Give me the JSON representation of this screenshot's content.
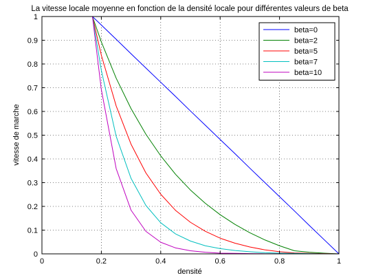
{
  "chart_data": {
    "type": "line",
    "title": "La vitesse locale moyenne en fonction de la densité locale pour différentes valeurs de beta",
    "xlabel": "densité",
    "ylabel": "vitesse de marche",
    "xlim": [
      0,
      1
    ],
    "ylim": [
      0,
      1
    ],
    "xticks": [
      "0",
      "0.2",
      "0.4",
      "0.6",
      "0.8",
      "1"
    ],
    "yticks": [
      "0",
      "0.1",
      "0.2",
      "0.3",
      "0.4",
      "0.5",
      "0.6",
      "0.7",
      "0.8",
      "0.9",
      "1"
    ],
    "grid": true,
    "legend_position": "top-right",
    "x": [
      0,
      0.1,
      0.17,
      0.2,
      0.25,
      0.3,
      0.35,
      0.4,
      0.45,
      0.5,
      0.55,
      0.6,
      0.65,
      0.7,
      0.75,
      0.8,
      0.85,
      0.9,
      0.95,
      1.0
    ],
    "series": [
      {
        "name": "beta=0",
        "color": "#0000ff",
        "values": [
          1,
          1,
          1,
          0.964,
          0.904,
          0.843,
          0.783,
          0.723,
          0.663,
          0.602,
          0.542,
          0.482,
          0.422,
          0.361,
          0.301,
          0.241,
          0.181,
          0.12,
          0.06,
          0
        ]
      },
      {
        "name": "beta=2",
        "color": "#008000",
        "values": [
          1,
          1,
          1,
          0.893,
          0.74,
          0.612,
          0.504,
          0.413,
          0.335,
          0.269,
          0.213,
          0.165,
          0.124,
          0.089,
          0.059,
          0.034,
          0.013,
          0.007,
          0.003,
          0
        ]
      },
      {
        "name": "beta=5",
        "color": "#ff0000",
        "values": [
          1,
          1,
          1,
          0.837,
          0.623,
          0.462,
          0.341,
          0.251,
          0.183,
          0.133,
          0.095,
          0.066,
          0.045,
          0.029,
          0.017,
          0.009,
          0.004,
          0.002,
          0.001,
          0
        ]
      },
      {
        "name": "beta=7",
        "color": "#00bfbf",
        "values": [
          1,
          1,
          1,
          0.773,
          0.495,
          0.318,
          0.204,
          0.131,
          0.084,
          0.054,
          0.034,
          0.022,
          0.014,
          0.009,
          0.005,
          0.003,
          0.002,
          0.001,
          0.0005,
          0
        ]
      },
      {
        "name": "beta=10",
        "color": "#bf00bf",
        "values": [
          1,
          1,
          1,
          0.692,
          0.359,
          0.184,
          0.095,
          0.049,
          0.025,
          0.013,
          0.007,
          0.003,
          0.002,
          0.001,
          0.0005,
          0.0002,
          0.0001,
          0,
          0,
          0
        ]
      }
    ]
  }
}
